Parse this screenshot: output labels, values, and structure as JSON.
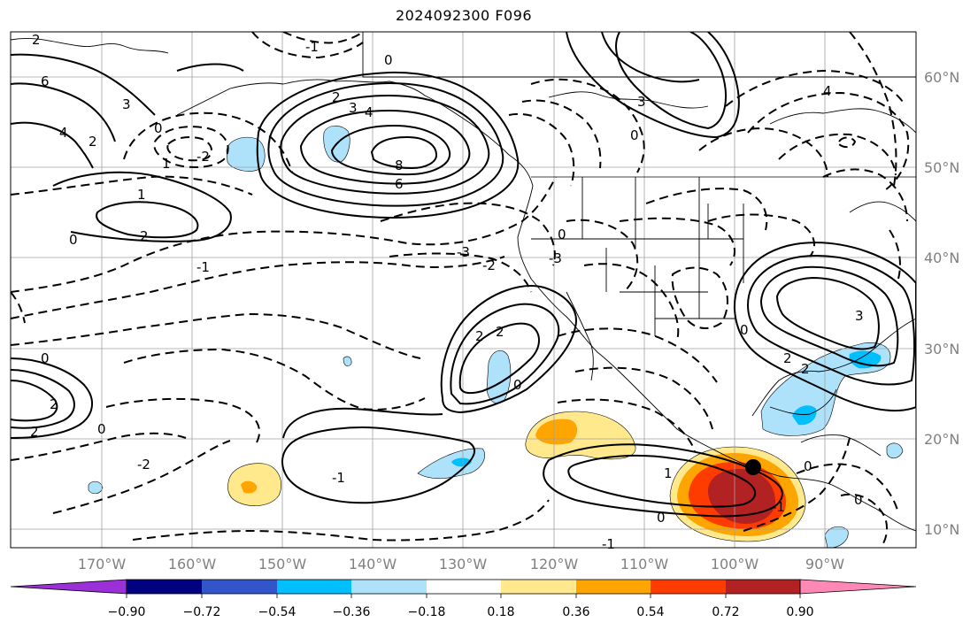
{
  "title": "2024092300 F096",
  "lon_labels": [
    "170°W",
    "160°W",
    "150°W",
    "140°W",
    "130°W",
    "120°W",
    "110°W",
    "100°W",
    "90°W"
  ],
  "lat_labels": [
    "60°N",
    "50°N",
    "40°N",
    "30°N",
    "20°N",
    "10°N"
  ],
  "colorbar": {
    "ticks": [
      "−0.90",
      "−0.72",
      "−0.54",
      "−0.36",
      "−0.18",
      "0.18",
      "0.36",
      "0.54",
      "0.72",
      "0.90"
    ],
    "colors": [
      "#9b30d9",
      "#000080",
      "#3355cc",
      "#00bfff",
      "#aee2fb",
      "#ffffff",
      "#ffe98c",
      "#ffa500",
      "#ff3c00",
      "#b22222",
      "#ff88b4"
    ]
  },
  "contour_labels": {
    "gulf_alaska_high": [
      "2",
      "3",
      "4",
      "6",
      "8",
      "0"
    ],
    "west_pacific": [
      "6",
      "4",
      "3",
      "2",
      "1",
      "2",
      "1",
      "0",
      "2"
    ],
    "dashed_negatives": [
      "-1",
      "-2",
      "-3",
      "-2",
      "-2",
      "-1",
      "0",
      "0"
    ],
    "subtropical_high": [
      "2",
      "2",
      "0",
      "-1"
    ],
    "hurricane_region": [
      "1",
      "0",
      "-1",
      "0"
    ],
    "gulf_region": [
      "2",
      "2",
      "3",
      "0",
      "-3",
      "0"
    ],
    "misc": [
      "2",
      "0",
      "2",
      "0",
      "0",
      "-1",
      "4",
      "3"
    ]
  },
  "features": {
    "storm_marker": "black-dot",
    "positive_shading": "warm-colors",
    "negative_shading": "cool-colors"
  }
}
